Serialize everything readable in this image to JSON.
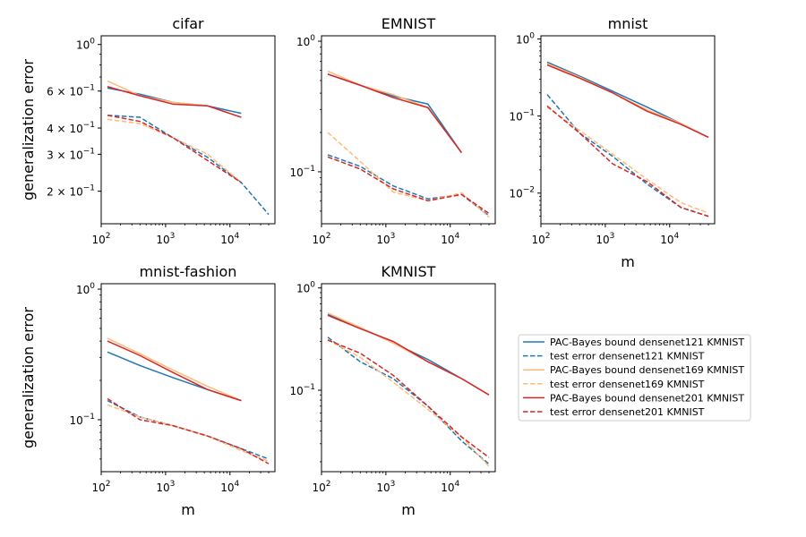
{
  "figure": {
    "ylabel": "generalization error",
    "xlabel": "m"
  },
  "series_styles": [
    {
      "id": "b121",
      "color": "#1f77b4",
      "dash": false
    },
    {
      "id": "t121",
      "color": "#1f77b4",
      "dash": true
    },
    {
      "id": "b169",
      "color": "#ffbb78",
      "dash": false
    },
    {
      "id": "t169",
      "color": "#ffbb78",
      "dash": true
    },
    {
      "id": "b201",
      "color": "#d62728",
      "dash": false
    },
    {
      "id": "t201",
      "color": "#d62728",
      "dash": true
    }
  ],
  "legend": [
    {
      "id": "b121",
      "label": "PAC-Bayes bound densenet121 KMNIST"
    },
    {
      "id": "t121",
      "label": "test error densenet121 KMNIST"
    },
    {
      "id": "b169",
      "label": "PAC-Bayes bound densenet169 KMNIST"
    },
    {
      "id": "t169",
      "label": "test error densenet169 KMNIST"
    },
    {
      "id": "b201",
      "label": "PAC-Bayes bound densenet201 KMNIST"
    },
    {
      "id": "t201",
      "label": "test error densenet201 KMNIST"
    }
  ],
  "chart_data": [
    {
      "type": "line",
      "title": "cifar",
      "xscale": "log",
      "yscale": "log",
      "xlim": [
        100,
        50000
      ],
      "ylim": [
        0.14,
        1.1
      ],
      "xticks": [
        {
          "v": 100,
          "base": "10",
          "exp": "2"
        },
        {
          "v": 1000,
          "base": "10",
          "exp": "3"
        },
        {
          "v": 10000,
          "base": "10",
          "exp": "4"
        }
      ],
      "yticks": [
        {
          "v": 1.0,
          "base": "10",
          "exp": "0",
          "mant": ""
        },
        {
          "v": 0.6,
          "mant": "6 × ",
          "base": "10",
          "exp": "−1"
        },
        {
          "v": 0.4,
          "mant": "4 × ",
          "base": "10",
          "exp": "−1"
        },
        {
          "v": 0.3,
          "mant": "3 × ",
          "base": "10",
          "exp": "−1"
        },
        {
          "v": 0.2,
          "mant": "2 × ",
          "base": "10",
          "exp": "−1"
        }
      ],
      "show_ylabel": true,
      "show_xlabel": false,
      "series": [
        {
          "id": "b121",
          "x": [
            125,
            400,
            1300,
            4500,
            15000
          ],
          "y": [
            0.62,
            0.58,
            0.53,
            0.51,
            0.47
          ]
        },
        {
          "id": "t121",
          "x": [
            125,
            400,
            1300,
            4500,
            15000,
            40000
          ],
          "y": [
            0.46,
            0.45,
            0.36,
            0.29,
            0.22,
            0.155
          ]
        },
        {
          "id": "b169",
          "x": [
            125,
            400,
            1300,
            4500,
            15000
          ],
          "y": [
            0.67,
            0.57,
            0.53,
            0.51,
            0.45
          ]
        },
        {
          "id": "t169",
          "x": [
            125,
            400,
            1300,
            4500,
            15000
          ],
          "y": [
            0.44,
            0.42,
            0.36,
            0.3,
            0.22
          ]
        },
        {
          "id": "b201",
          "x": [
            125,
            400,
            1300,
            4500,
            15000
          ],
          "y": [
            0.63,
            0.57,
            0.52,
            0.51,
            0.45
          ]
        },
        {
          "id": "t201",
          "x": [
            125,
            400,
            1300,
            4500,
            15000
          ],
          "y": [
            0.46,
            0.43,
            0.36,
            0.28,
            0.22
          ]
        }
      ]
    },
    {
      "type": "line",
      "title": "EMNIST",
      "xscale": "log",
      "yscale": "log",
      "xlim": [
        100,
        50000
      ],
      "ylim": [
        0.04,
        1.1
      ],
      "xticks": [
        {
          "v": 100,
          "base": "10",
          "exp": "2"
        },
        {
          "v": 1000,
          "base": "10",
          "exp": "3"
        },
        {
          "v": 10000,
          "base": "10",
          "exp": "4"
        }
      ],
      "yticks": [
        {
          "v": 1.0,
          "base": "10",
          "exp": "0",
          "mant": ""
        },
        {
          "v": 0.1,
          "base": "10",
          "exp": "−1",
          "mant": ""
        }
      ],
      "show_ylabel": false,
      "show_xlabel": false,
      "series": [
        {
          "id": "b121",
          "x": [
            125,
            400,
            1300,
            4500,
            15000
          ],
          "y": [
            0.56,
            0.46,
            0.38,
            0.33,
            0.14
          ]
        },
        {
          "id": "t121",
          "x": [
            125,
            400,
            1300,
            4500,
            15000,
            40000
          ],
          "y": [
            0.135,
            0.11,
            0.078,
            0.062,
            0.067,
            0.046
          ]
        },
        {
          "id": "b169",
          "x": [
            125,
            400,
            1300,
            4500,
            15000
          ],
          "y": [
            0.59,
            0.46,
            0.39,
            0.31,
            0.14
          ]
        },
        {
          "id": "t169",
          "x": [
            125,
            400,
            1300,
            4500,
            15000,
            40000
          ],
          "y": [
            0.2,
            0.12,
            0.07,
            0.06,
            0.069,
            0.045
          ]
        },
        {
          "id": "b201",
          "x": [
            125,
            400,
            1300,
            4500,
            15000
          ],
          "y": [
            0.56,
            0.46,
            0.37,
            0.31,
            0.14
          ]
        },
        {
          "id": "t201",
          "x": [
            125,
            400,
            1300,
            4500,
            15000,
            40000
          ],
          "y": [
            0.13,
            0.105,
            0.074,
            0.06,
            0.067,
            0.048
          ]
        }
      ]
    },
    {
      "type": "line",
      "title": "mnist",
      "xscale": "log",
      "yscale": "log",
      "xlim": [
        100,
        50000
      ],
      "ylim": [
        0.004,
        1.1
      ],
      "xticks": [
        {
          "v": 100,
          "base": "10",
          "exp": "2"
        },
        {
          "v": 1000,
          "base": "10",
          "exp": "3"
        },
        {
          "v": 10000,
          "base": "10",
          "exp": "4"
        }
      ],
      "yticks": [
        {
          "v": 1.0,
          "base": "10",
          "exp": "0",
          "mant": ""
        },
        {
          "v": 0.1,
          "base": "10",
          "exp": "−1",
          "mant": ""
        },
        {
          "v": 0.01,
          "base": "10",
          "exp": "−2",
          "mant": ""
        }
      ],
      "show_ylabel": false,
      "show_xlabel": true,
      "series": [
        {
          "id": "b121",
          "x": [
            125,
            400,
            1300,
            4500,
            15000,
            40000
          ],
          "y": [
            0.5,
            0.33,
            0.21,
            0.13,
            0.08,
            0.053
          ]
        },
        {
          "id": "t121",
          "x": [
            125,
            400,
            1300,
            4500,
            15000,
            40000
          ],
          "y": [
            0.19,
            0.06,
            0.03,
            0.013,
            0.0065,
            0.005
          ]
        },
        {
          "id": "b169",
          "x": [
            125,
            400,
            1300,
            4500,
            15000,
            40000
          ],
          "y": [
            0.48,
            0.32,
            0.2,
            0.12,
            0.08,
            0.053
          ]
        },
        {
          "id": "t169",
          "x": [
            125,
            400,
            1300,
            4500,
            15000,
            40000
          ],
          "y": [
            0.13,
            0.065,
            0.032,
            0.015,
            0.0075,
            0.0055
          ]
        },
        {
          "id": "b201",
          "x": [
            125,
            400,
            1300,
            4500,
            15000,
            40000
          ],
          "y": [
            0.46,
            0.31,
            0.2,
            0.115,
            0.078,
            0.053
          ]
        },
        {
          "id": "t201",
          "x": [
            125,
            400,
            1300,
            4500,
            15000,
            40000
          ],
          "y": [
            0.135,
            0.06,
            0.024,
            0.014,
            0.0065,
            0.005
          ]
        }
      ]
    },
    {
      "type": "line",
      "title": "mnist-fashion",
      "xscale": "log",
      "yscale": "log",
      "xlim": [
        100,
        50000
      ],
      "ylim": [
        0.04,
        1.1
      ],
      "xticks": [
        {
          "v": 100,
          "base": "10",
          "exp": "2"
        },
        {
          "v": 1000,
          "base": "10",
          "exp": "3"
        },
        {
          "v": 10000,
          "base": "10",
          "exp": "4"
        }
      ],
      "yticks": [
        {
          "v": 1.0,
          "base": "10",
          "exp": "0",
          "mant": ""
        },
        {
          "v": 0.1,
          "base": "10",
          "exp": "−1",
          "mant": ""
        }
      ],
      "show_ylabel": true,
      "show_xlabel": true,
      "series": [
        {
          "id": "b121",
          "x": [
            125,
            400,
            1300,
            4500,
            15000
          ],
          "y": [
            0.33,
            0.26,
            0.21,
            0.17,
            0.14
          ]
        },
        {
          "id": "t121",
          "x": [
            125,
            400,
            1300,
            4500,
            15000,
            40000
          ],
          "y": [
            0.14,
            0.105,
            0.09,
            0.075,
            0.06,
            0.05
          ]
        },
        {
          "id": "b169",
          "x": [
            125,
            400,
            1300,
            4500,
            15000
          ],
          "y": [
            0.42,
            0.32,
            0.24,
            0.18,
            0.14
          ]
        },
        {
          "id": "t169",
          "x": [
            125,
            400,
            1300,
            4500,
            15000,
            40000
          ],
          "y": [
            0.13,
            0.105,
            0.09,
            0.075,
            0.058,
            0.048
          ]
        },
        {
          "id": "b201",
          "x": [
            125,
            400,
            1300,
            4500,
            15000
          ],
          "y": [
            0.4,
            0.31,
            0.23,
            0.17,
            0.14
          ]
        },
        {
          "id": "t201",
          "x": [
            125,
            400,
            1300,
            4500,
            15000,
            40000
          ],
          "y": [
            0.145,
            0.1,
            0.09,
            0.075,
            0.06,
            0.046
          ]
        }
      ]
    },
    {
      "type": "line",
      "title": "KMNIST",
      "xscale": "log",
      "yscale": "log",
      "xlim": [
        100,
        50000
      ],
      "ylim": [
        0.016,
        1.1
      ],
      "xticks": [
        {
          "v": 100,
          "base": "10",
          "exp": "2"
        },
        {
          "v": 1000,
          "base": "10",
          "exp": "3"
        },
        {
          "v": 10000,
          "base": "10",
          "exp": "4"
        }
      ],
      "yticks": [
        {
          "v": 1.0,
          "base": "10",
          "exp": "0",
          "mant": ""
        },
        {
          "v": 0.1,
          "base": "10",
          "exp": "−1",
          "mant": ""
        }
      ],
      "show_ylabel": false,
      "show_xlabel": true,
      "series": [
        {
          "id": "b121",
          "x": [
            125,
            400,
            1300,
            4500,
            15000,
            40000
          ],
          "y": [
            0.55,
            0.41,
            0.29,
            0.2,
            0.13,
            0.09
          ]
        },
        {
          "id": "t121",
          "x": [
            125,
            400,
            1300,
            4500,
            15000,
            40000
          ],
          "y": [
            0.33,
            0.19,
            0.13,
            0.07,
            0.032,
            0.019
          ]
        },
        {
          "id": "b169",
          "x": [
            125,
            400,
            1300,
            4500,
            15000,
            40000
          ],
          "y": [
            0.57,
            0.41,
            0.29,
            0.19,
            0.13,
            0.09
          ]
        },
        {
          "id": "t169",
          "x": [
            125,
            400,
            1300,
            4500,
            15000,
            40000
          ],
          "y": [
            0.31,
            0.21,
            0.12,
            0.065,
            0.035,
            0.018
          ]
        },
        {
          "id": "b201",
          "x": [
            125,
            400,
            1300,
            4500,
            15000,
            40000
          ],
          "y": [
            0.54,
            0.4,
            0.3,
            0.19,
            0.13,
            0.09
          ]
        },
        {
          "id": "t201",
          "x": [
            125,
            400,
            1300,
            4500,
            15000,
            40000
          ],
          "y": [
            0.31,
            0.23,
            0.14,
            0.07,
            0.035,
            0.022
          ]
        }
      ]
    }
  ]
}
